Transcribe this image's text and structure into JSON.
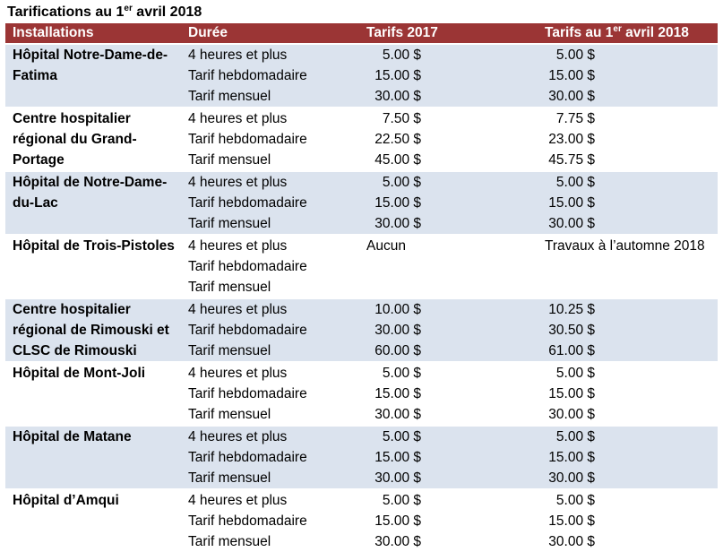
{
  "caption": {
    "text": "Tarifications au 1",
    "sup": "er",
    "rest": " avril 2018"
  },
  "headers": {
    "installations": "Installations",
    "duree": "Durée",
    "tarifs2017": "Tarifs  2017",
    "tarifs2018_a": "Tarifs au 1",
    "tarifs2018_sup": "er",
    "tarifs2018_b": " avril 2018"
  },
  "groups": [
    {
      "name": "Hôpital Notre-Dame-de-Fatima",
      "rows": [
        {
          "duree": "4 heures et plus",
          "t2017": "5.00 $",
          "t2018": "5.00 $"
        },
        {
          "duree": "Tarif hebdomadaire",
          "t2017": "15.00 $",
          "t2018": "15.00 $"
        },
        {
          "duree": "Tarif mensuel",
          "t2017": "30.00 $",
          "t2018": "30.00 $"
        }
      ]
    },
    {
      "name": "Centre hospitalier régional du Grand-Portage",
      "rows": [
        {
          "duree": "4 heures et plus",
          "t2017": "7.50 $",
          "t2018": "7.75 $"
        },
        {
          "duree": "Tarif hebdomadaire",
          "t2017": "22.50 $",
          "t2018": "23.00 $"
        },
        {
          "duree": "Tarif mensuel",
          "t2017": "45.00 $",
          "t2018": "45.75 $"
        }
      ]
    },
    {
      "name": "Hôpital de Notre-Dame-du-Lac",
      "rows": [
        {
          "duree": "4 heures et plus",
          "t2017": "5.00 $",
          "t2018": "5.00 $"
        },
        {
          "duree": "Tarif hebdomadaire",
          "t2017": "15.00 $",
          "t2018": "15.00 $"
        },
        {
          "duree": "Tarif mensuel",
          "t2017": "30.00 $",
          "t2018": "30.00 $"
        }
      ]
    },
    {
      "name": "Hôpital de Trois-Pistoles",
      "note2017": "Aucun",
      "note2018": "Travaux à l’automne 2018",
      "rows": [
        {
          "duree": "4 heures et plus"
        },
        {
          "duree": "Tarif hebdomadaire"
        },
        {
          "duree": "Tarif mensuel"
        }
      ]
    },
    {
      "name": "Centre hospitalier régional de Rimouski et CLSC de Rimouski",
      "rows": [
        {
          "duree": "4 heures et plus",
          "t2017": "10.00 $",
          "t2018": "10.25 $"
        },
        {
          "duree": "Tarif hebdomadaire",
          "t2017": "30.00 $",
          "t2018": "30.50 $"
        },
        {
          "duree": "Tarif mensuel",
          "t2017": "60.00 $",
          "t2018": "61.00 $"
        }
      ]
    },
    {
      "name": "Hôpital de Mont-Joli",
      "rows": [
        {
          "duree": "4 heures et plus",
          "t2017": "5.00 $",
          "t2018": "5.00 $"
        },
        {
          "duree": "Tarif hebdomadaire",
          "t2017": "15.00 $",
          "t2018": "15.00 $"
        },
        {
          "duree": "Tarif mensuel",
          "t2017": "30.00 $",
          "t2018": "30.00 $"
        }
      ]
    },
    {
      "name": "Hôpital de Matane",
      "rows": [
        {
          "duree": "4 heures et plus",
          "t2017": "5.00 $",
          "t2018": "5.00 $"
        },
        {
          "duree": "Tarif hebdomadaire",
          "t2017": "15.00 $",
          "t2018": "15.00 $"
        },
        {
          "duree": "Tarif mensuel",
          "t2017": "30.00 $",
          "t2018": "30.00 $"
        }
      ]
    },
    {
      "name": "Hôpital d’Amqui",
      "rows": [
        {
          "duree": "4 heures et plus",
          "t2017": "5.00 $",
          "t2018": "5.00 $"
        },
        {
          "duree": "Tarif hebdomadaire",
          "t2017": "15.00 $",
          "t2018": "15.00 $"
        },
        {
          "duree": "Tarif mensuel",
          "t2017": "30.00 $",
          "t2018": "30.00 $"
        }
      ]
    }
  ],
  "colors": {
    "header_bg": "#9b3535",
    "band": "#dbe3ee"
  }
}
